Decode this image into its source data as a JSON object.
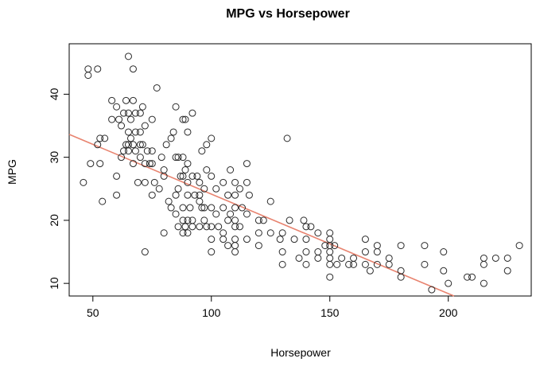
{
  "chart_data": {
    "type": "scatter",
    "title": "MPG vs Horsepower",
    "xlabel": "Horsepower",
    "ylabel": "MPG",
    "xlim": [
      40,
      235
    ],
    "ylim": [
      8,
      48
    ],
    "x_ticks": [
      50,
      100,
      150,
      200
    ],
    "y_ticks": [
      10,
      20,
      30,
      40
    ],
    "grid": false,
    "point_color": "#2a2a2a",
    "regression_line": {
      "color": "#e8836f",
      "intercept": 39.94,
      "slope": -0.1578
    },
    "points": [
      [
        46,
        26
      ],
      [
        48,
        44
      ],
      [
        48,
        43
      ],
      [
        49,
        29
      ],
      [
        52,
        44
      ],
      [
        52,
        32
      ],
      [
        53,
        29
      ],
      [
        53,
        33
      ],
      [
        54,
        23
      ],
      [
        55,
        33
      ],
      [
        58,
        39
      ],
      [
        58,
        36
      ],
      [
        60,
        27
      ],
      [
        60,
        24
      ],
      [
        60,
        38
      ],
      [
        61,
        36
      ],
      [
        62,
        35
      ],
      [
        62,
        30
      ],
      [
        63,
        31
      ],
      [
        63,
        37
      ],
      [
        64,
        32
      ],
      [
        64,
        39
      ],
      [
        65,
        32
      ],
      [
        65,
        46
      ],
      [
        65,
        37
      ],
      [
        65,
        34
      ],
      [
        65,
        31
      ],
      [
        66,
        33
      ],
      [
        66,
        36
      ],
      [
        67,
        29
      ],
      [
        67,
        32
      ],
      [
        67,
        39
      ],
      [
        67,
        44
      ],
      [
        68,
        37
      ],
      [
        68,
        34
      ],
      [
        68,
        31
      ],
      [
        69,
        26
      ],
      [
        70,
        32
      ],
      [
        70,
        34
      ],
      [
        70,
        37
      ],
      [
        70,
        30
      ],
      [
        71,
        32
      ],
      [
        71,
        38
      ],
      [
        72,
        26
      ],
      [
        72,
        35
      ],
      [
        72,
        29
      ],
      [
        72,
        15
      ],
      [
        73,
        31
      ],
      [
        74,
        29
      ],
      [
        75,
        31
      ],
      [
        75,
        36
      ],
      [
        75,
        29
      ],
      [
        75,
        24
      ],
      [
        76,
        26
      ],
      [
        77,
        41
      ],
      [
        78,
        25
      ],
      [
        79,
        30
      ],
      [
        80,
        27
      ],
      [
        80,
        28
      ],
      [
        80,
        18
      ],
      [
        81,
        32
      ],
      [
        82,
        23
      ],
      [
        83,
        33
      ],
      [
        83,
        22
      ],
      [
        84,
        34
      ],
      [
        85,
        38
      ],
      [
        85,
        30
      ],
      [
        85,
        24
      ],
      [
        85,
        21
      ],
      [
        86,
        30
      ],
      [
        86,
        25
      ],
      [
        86,
        19
      ],
      [
        87,
        27
      ],
      [
        88,
        36
      ],
      [
        88,
        30
      ],
      [
        88,
        27
      ],
      [
        88,
        22
      ],
      [
        88,
        20
      ],
      [
        88,
        18
      ],
      [
        89,
        36
      ],
      [
        89,
        28
      ],
      [
        89,
        19
      ],
      [
        90,
        34
      ],
      [
        90,
        29
      ],
      [
        90,
        26
      ],
      [
        90,
        24
      ],
      [
        90,
        20
      ],
      [
        90,
        18
      ],
      [
        91,
        22
      ],
      [
        92,
        37
      ],
      [
        92,
        27
      ],
      [
        92,
        20
      ],
      [
        92,
        19
      ],
      [
        93,
        24
      ],
      [
        94,
        27
      ],
      [
        95,
        26
      ],
      [
        95,
        24
      ],
      [
        95,
        23
      ],
      [
        95,
        19
      ],
      [
        96,
        31
      ],
      [
        96,
        22
      ],
      [
        97,
        25
      ],
      [
        97,
        22
      ],
      [
        97,
        20
      ],
      [
        98,
        32
      ],
      [
        98,
        28
      ],
      [
        98,
        19
      ],
      [
        100,
        33
      ],
      [
        100,
        27
      ],
      [
        100,
        22
      ],
      [
        100,
        19
      ],
      [
        100,
        17
      ],
      [
        100,
        15
      ],
      [
        102,
        25
      ],
      [
        102,
        21
      ],
      [
        103,
        19
      ],
      [
        105,
        26
      ],
      [
        105,
        22
      ],
      [
        105,
        18
      ],
      [
        105,
        17
      ],
      [
        107,
        24
      ],
      [
        107,
        20
      ],
      [
        107,
        16
      ],
      [
        108,
        28
      ],
      [
        108,
        21
      ],
      [
        110,
        26
      ],
      [
        110,
        24
      ],
      [
        110,
        22
      ],
      [
        110,
        20
      ],
      [
        110,
        19
      ],
      [
        110,
        17
      ],
      [
        110,
        16
      ],
      [
        110,
        15
      ],
      [
        112,
        25
      ],
      [
        112,
        19
      ],
      [
        113,
        22
      ],
      [
        115,
        29
      ],
      [
        115,
        26
      ],
      [
        115,
        21
      ],
      [
        115,
        17
      ],
      [
        116,
        24
      ],
      [
        120,
        20
      ],
      [
        120,
        18
      ],
      [
        120,
        16
      ],
      [
        122,
        20
      ],
      [
        125,
        18
      ],
      [
        125,
        23
      ],
      [
        129,
        17
      ],
      [
        130,
        18
      ],
      [
        130,
        15
      ],
      [
        130,
        13
      ],
      [
        132,
        33
      ],
      [
        133,
        20
      ],
      [
        135,
        17
      ],
      [
        137,
        14
      ],
      [
        139,
        20
      ],
      [
        140,
        19
      ],
      [
        140,
        17
      ],
      [
        140,
        15
      ],
      [
        140,
        13
      ],
      [
        142,
        19
      ],
      [
        145,
        18
      ],
      [
        145,
        15
      ],
      [
        145,
        14
      ],
      [
        148,
        16
      ],
      [
        150,
        18
      ],
      [
        150,
        17
      ],
      [
        150,
        16
      ],
      [
        150,
        15
      ],
      [
        150,
        14
      ],
      [
        150,
        13
      ],
      [
        150,
        11
      ],
      [
        152,
        16
      ],
      [
        153,
        13
      ],
      [
        155,
        14
      ],
      [
        158,
        13
      ],
      [
        160,
        14
      ],
      [
        160,
        13
      ],
      [
        165,
        17
      ],
      [
        165,
        15
      ],
      [
        165,
        13
      ],
      [
        167,
        12
      ],
      [
        170,
        16
      ],
      [
        170,
        15
      ],
      [
        170,
        13
      ],
      [
        175,
        14
      ],
      [
        175,
        13
      ],
      [
        180,
        16
      ],
      [
        180,
        12
      ],
      [
        180,
        11
      ],
      [
        190,
        16
      ],
      [
        190,
        13
      ],
      [
        193,
        9
      ],
      [
        198,
        15
      ],
      [
        198,
        12
      ],
      [
        200,
        10
      ],
      [
        208,
        11
      ],
      [
        210,
        11
      ],
      [
        215,
        14
      ],
      [
        215,
        13
      ],
      [
        215,
        10
      ],
      [
        220,
        14
      ],
      [
        225,
        14
      ],
      [
        225,
        12
      ],
      [
        230,
        16
      ]
    ]
  }
}
